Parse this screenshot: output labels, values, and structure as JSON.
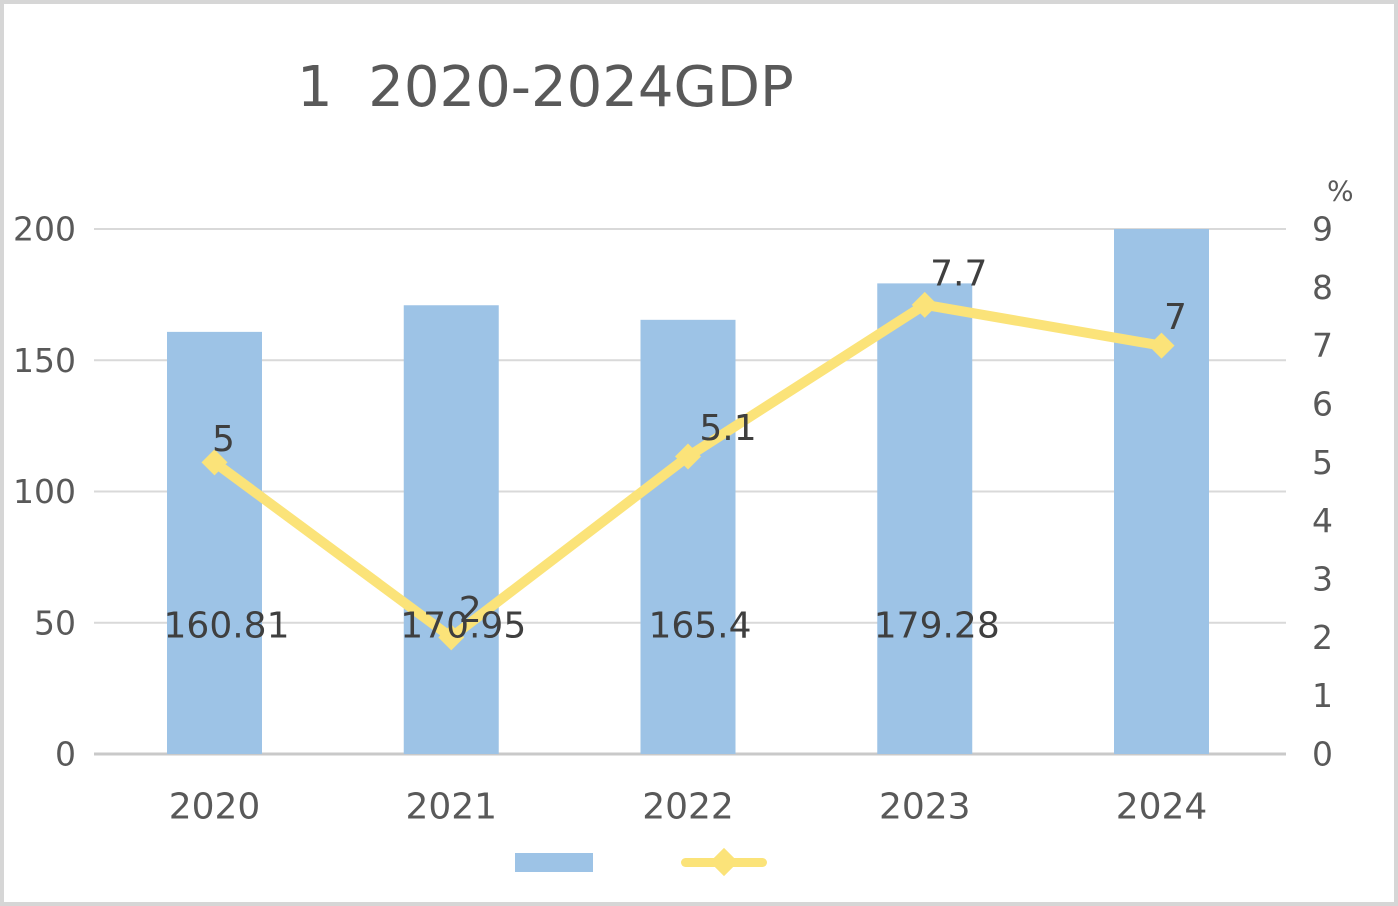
{
  "title": "1  2020-2024GDP",
  "chart_data": {
    "type": "combo",
    "title": "1  2020-2024GDP",
    "categories": [
      "2020",
      "2021",
      "2022",
      "2023",
      "2024"
    ],
    "series": [
      {
        "name": "gdp-bars",
        "type": "bar",
        "axis": "left",
        "color": "#9DC3E6",
        "values": [
          160.81,
          170.95,
          165.4,
          179.28,
          200
        ],
        "labels": [
          "160.81",
          "170.95",
          "165.4",
          "179.28",
          ""
        ]
      },
      {
        "name": "growth-rate-line",
        "type": "line",
        "axis": "right",
        "color": "#FBE379",
        "marker": "diamond",
        "values": [
          5,
          2,
          5.1,
          7.7,
          7
        ],
        "labels": [
          "5",
          "2",
          "5.1",
          "7.7",
          "7"
        ]
      }
    ],
    "left_axis": {
      "range": [
        0,
        200
      ],
      "ticks": [
        "0",
        "50",
        "100",
        "150",
        "200"
      ]
    },
    "right_axis": {
      "range": [
        0,
        9
      ],
      "ticks": [
        "0",
        "1",
        "2",
        "3",
        "4",
        "5",
        "6",
        "7",
        "8",
        "9"
      ],
      "unit_label": "%"
    },
    "grid": true,
    "legend_position": "bottom"
  },
  "colors": {
    "bar": "#9DC3E6",
    "line": "#FBE379",
    "axis_text": "#595959",
    "data_label_text": "#3F3F3F",
    "gridline": "#D9D9D9",
    "baseline": "#C9C9C9",
    "title_text": "#595959",
    "frame_border": "#D6D6D6"
  }
}
